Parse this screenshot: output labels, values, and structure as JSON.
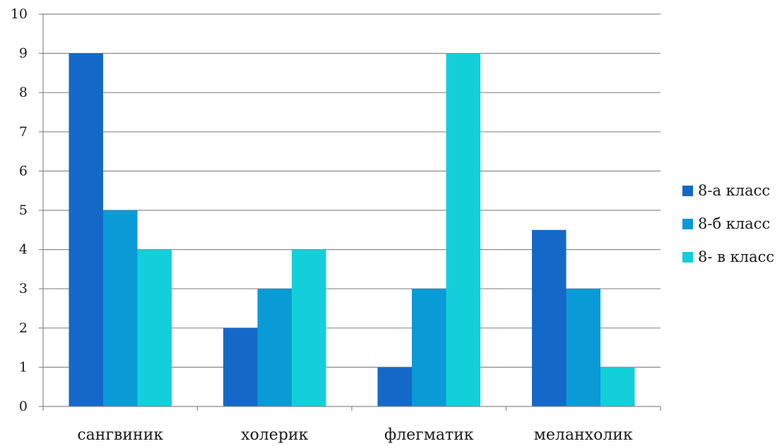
{
  "chart_data": {
    "type": "bar",
    "title": "",
    "xlabel": "",
    "ylabel": "",
    "categories": [
      "сангвиник",
      "холерик",
      "флегматик",
      "меланхолик"
    ],
    "series": [
      {
        "name": "8-а класс",
        "color": "#1469c8",
        "values": [
          9,
          2,
          1,
          4.5
        ]
      },
      {
        "name": "8-б класс",
        "color": "#0a9ad6",
        "values": [
          5,
          3,
          3,
          3
        ]
      },
      {
        "name": "8- в класс",
        "color": "#12cfd9",
        "values": [
          4,
          4,
          9,
          1
        ]
      }
    ],
    "ylim": [
      0,
      10
    ],
    "yticks": [
      "0",
      "1",
      "2",
      "3",
      "4",
      "5",
      "6",
      "7",
      "8",
      "9",
      "10"
    ],
    "grid": true,
    "legend_position": "right"
  }
}
